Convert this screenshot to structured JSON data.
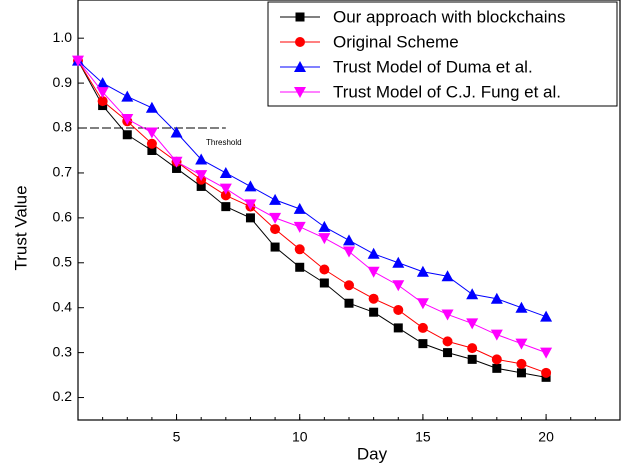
{
  "chart_data": {
    "type": "line",
    "x_label": "Day",
    "y_label": "Trust Value",
    "x": [
      1,
      2,
      3,
      4,
      5,
      6,
      7,
      8,
      9,
      10,
      11,
      12,
      13,
      14,
      15,
      16,
      17,
      18,
      19,
      20
    ],
    "series": [
      {
        "name": "Our approach with blockchains",
        "color": "#000000",
        "marker": "square",
        "values": [
          0.95,
          0.85,
          0.785,
          0.75,
          0.71,
          0.67,
          0.625,
          0.6,
          0.535,
          0.49,
          0.455,
          0.41,
          0.39,
          0.355,
          0.32,
          0.3,
          0.285,
          0.265,
          0.255,
          0.245
        ]
      },
      {
        "name": "Original Scheme",
        "color": "#ff0000",
        "marker": "circle",
        "values": [
          0.95,
          0.86,
          0.815,
          0.765,
          0.725,
          0.685,
          0.65,
          0.625,
          0.575,
          0.53,
          0.485,
          0.45,
          0.42,
          0.395,
          0.355,
          0.325,
          0.31,
          0.285,
          0.275,
          0.255
        ]
      },
      {
        "name": "Trust Model of Duma et al.",
        "color": "#0000ff",
        "marker": "triangle-up",
        "values": [
          0.95,
          0.9,
          0.87,
          0.845,
          0.79,
          0.73,
          0.7,
          0.67,
          0.64,
          0.62,
          0.58,
          0.55,
          0.52,
          0.5,
          0.48,
          0.47,
          0.43,
          0.42,
          0.4,
          0.38
        ]
      },
      {
        "name": "Trust Model of C.J. Fung et al.",
        "color": "#ff00ff",
        "marker": "triangle-down",
        "values": [
          0.95,
          0.88,
          0.82,
          0.79,
          0.725,
          0.695,
          0.665,
          0.63,
          0.6,
          0.58,
          0.555,
          0.525,
          0.48,
          0.45,
          0.41,
          0.385,
          0.365,
          0.34,
          0.32,
          0.3
        ]
      }
    ],
    "xlim": [
      1,
      23
    ],
    "xticks": [
      5,
      10,
      15,
      20
    ],
    "ylim": [
      0.15,
      1.085
    ],
    "yticks": [
      0.2,
      0.3,
      0.4,
      0.5,
      0.6,
      0.7,
      0.8,
      0.9,
      {
        "value": 1,
        "label": "1.0"
      }
    ],
    "threshold": {
      "label": "Threshold",
      "value": 0.8,
      "x": [
        1,
        7
      ]
    },
    "legend": "top-right"
  }
}
